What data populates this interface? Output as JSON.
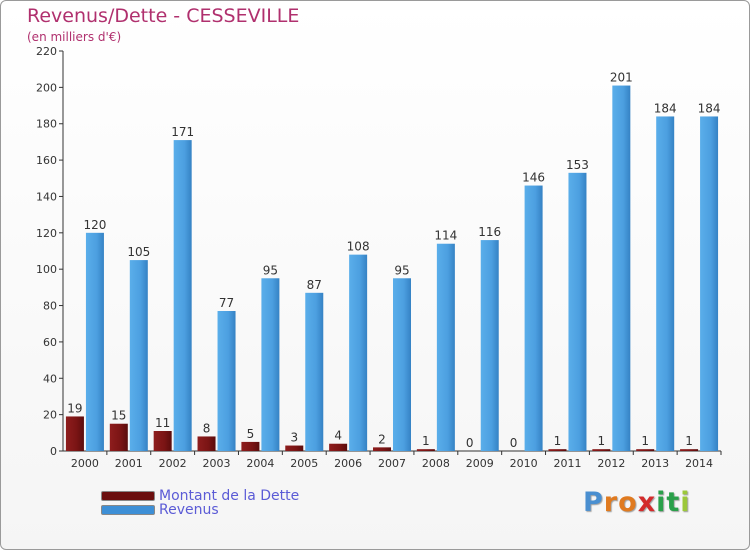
{
  "header": {
    "title": "Revenus/Dette - CESSEVILLE",
    "unit": "(en milliers d'€)"
  },
  "chart_data": {
    "type": "bar",
    "title": "Revenus/Dette - CESSEVILLE",
    "ylabel": "(en milliers d'€)",
    "xlabel": "",
    "categories": [
      "2000",
      "2001",
      "2002",
      "2003",
      "2004",
      "2005",
      "2006",
      "2007",
      "2008",
      "2009",
      "2010",
      "2011",
      "2012",
      "2013",
      "2014"
    ],
    "series": [
      {
        "name": "Montant de la Dette",
        "values": [
          19,
          15,
          11,
          8,
          5,
          3,
          4,
          2,
          1,
          0,
          0,
          1,
          1,
          1,
          1
        ],
        "color": "#7a1414"
      },
      {
        "name": "Revenus",
        "values": [
          120,
          105,
          171,
          77,
          95,
          87,
          108,
          95,
          114,
          116,
          146,
          153,
          201,
          184,
          184
        ],
        "color": "#4c9fe0"
      }
    ],
    "ylim": [
      0,
      220
    ],
    "yticks": [
      0,
      20,
      40,
      60,
      80,
      100,
      120,
      140,
      160,
      180,
      200,
      220
    ],
    "grid": false,
    "legend": "bottom-left"
  },
  "legend": {
    "items": [
      {
        "label": "Montant de la Dette",
        "color": "#6b0f0f"
      },
      {
        "label": "Revenus",
        "color": "#3d8fd6"
      }
    ]
  },
  "logo": {
    "letters": [
      {
        "ch": "P",
        "color": "#4a8fd0"
      },
      {
        "ch": "r",
        "color": "#e07a1f"
      },
      {
        "ch": "o",
        "color": "#e07a1f"
      },
      {
        "ch": "x",
        "color": "#d32b2b"
      },
      {
        "ch": "i",
        "color": "#2aa04a"
      },
      {
        "ch": "t",
        "color": "#2aa04a"
      },
      {
        "ch": "i",
        "color": "#9cc83a"
      }
    ]
  },
  "colors": {
    "title": "#b0306e",
    "legend_text": "#5b5bd6",
    "axis": "#333333"
  }
}
